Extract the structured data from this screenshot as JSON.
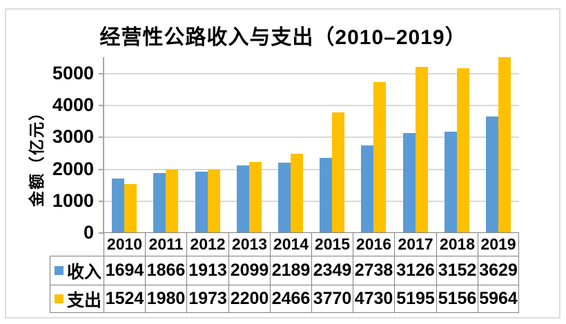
{
  "chart_data": {
    "type": "bar",
    "title": "经营性公路收入与支出（2010–2019）",
    "ylabel": "金额（亿元）",
    "xlabel": "",
    "categories": [
      "2010",
      "2011",
      "2012",
      "2013",
      "2014",
      "2015",
      "2016",
      "2017",
      "2018",
      "2019"
    ],
    "series": [
      {
        "name": "收入",
        "key": "income",
        "color": "#5B9BD5",
        "values": [
          1694,
          1866,
          1913,
          2099,
          2189,
          2349,
          2738,
          3126,
          3152,
          3629
        ]
      },
      {
        "name": "支出",
        "key": "expense",
        "color": "#FFC000",
        "values": [
          1524,
          1980,
          1973,
          2200,
          2466,
          3770,
          4730,
          5195,
          5156,
          5964
        ]
      }
    ],
    "yticks": [
      0,
      1000,
      2000,
      3000,
      4000,
      5000
    ],
    "ylim": [
      0,
      5500
    ],
    "grid": true,
    "legend_position": "table-left"
  },
  "colors": {
    "grid": "#d9d9d9",
    "axis": "#a6a6a6",
    "table_border": "#7f7f7f",
    "frame": "#dcdcdc",
    "text": "#000000"
  }
}
